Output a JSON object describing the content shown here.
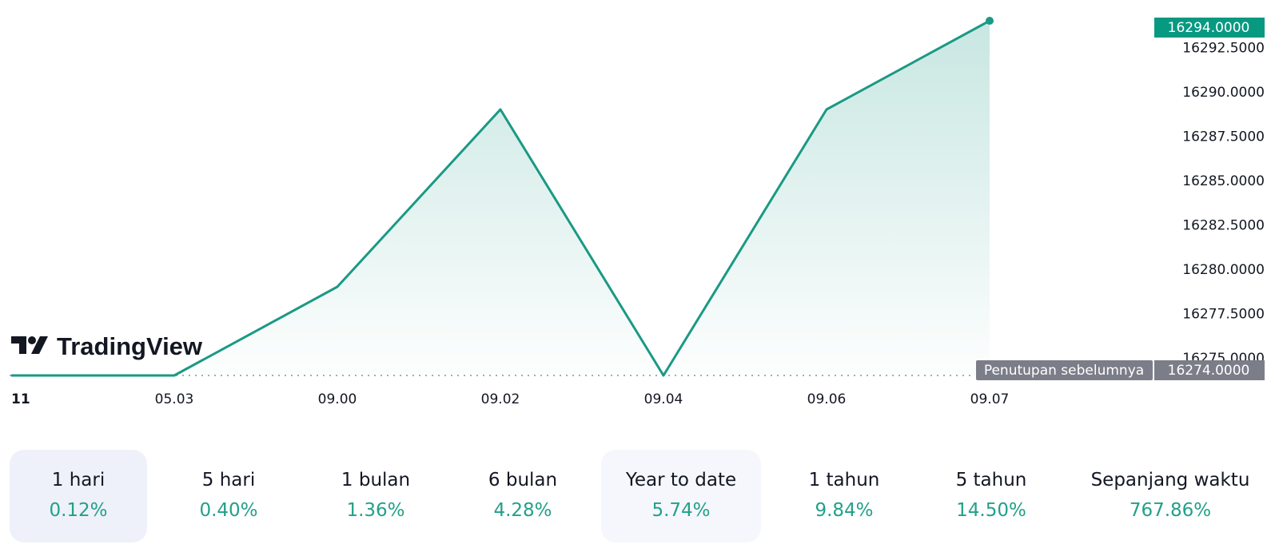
{
  "chart_data": {
    "type": "area",
    "x": [
      "",
      "05.03",
      "09.00",
      "09.02",
      "09.04",
      "09.06",
      "09.07"
    ],
    "values": [
      16274.0,
      16274.0,
      16279.0,
      16289.0,
      16274.0,
      16289.0,
      16294.0
    ],
    "ylim": [
      16274.0,
      16294.0
    ],
    "y_ticks": [
      "16292.5000",
      "16290.0000",
      "16287.5000",
      "16285.0000",
      "16282.5000",
      "16280.0000",
      "16277.5000",
      "16275.0000"
    ],
    "y_tick_values": [
      16292.5,
      16290.0,
      16287.5,
      16285.0,
      16282.5,
      16280.0,
      16277.5,
      16275.0
    ],
    "x_ticks": [
      "11",
      "05.03",
      "09.00",
      "09.02",
      "09.04",
      "09.06",
      "09.07"
    ],
    "x_tick_index": [
      0,
      1,
      2,
      3,
      4,
      5,
      6
    ],
    "last_price": "16294.0000",
    "previous_close": {
      "label": "Penutupan sebelumnya",
      "value": "16274.0000",
      "numeric": 16274.0
    },
    "grid": false,
    "colors": {
      "line": "#1a9985",
      "tag": "#089981",
      "prev_close_tag": "#7b7d88"
    }
  },
  "logo": {
    "text": "TradingView"
  },
  "periods": [
    {
      "label": "1 hari",
      "value": "0.12%"
    },
    {
      "label": "5 hari",
      "value": "0.40%"
    },
    {
      "label": "1 bulan",
      "value": "1.36%"
    },
    {
      "label": "6 bulan",
      "value": "4.28%"
    },
    {
      "label": "Year to date",
      "value": "5.74%"
    },
    {
      "label": "1 tahun",
      "value": "9.84%"
    },
    {
      "label": "5 tahun",
      "value": "14.50%"
    },
    {
      "label": "Sepanjang waktu",
      "value": "767.86%"
    }
  ]
}
